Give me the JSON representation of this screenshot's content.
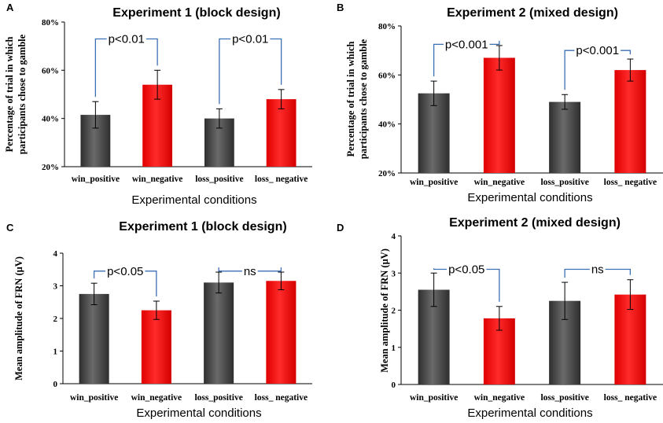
{
  "colors": {
    "gray": "#4a4a4a",
    "red": "#ff0000",
    "bracket": "#3d6fb4"
  },
  "chart_data": [
    {
      "panel": "A",
      "type": "bar",
      "title": "Experiment 1 (block design)",
      "xlabel": "Experimental conditions",
      "ylabel": [
        "Percentage of trial  in which",
        "participants chose to gamble"
      ],
      "categories": [
        "win_positive",
        "win_negative",
        "loss_positive",
        "loss_ negative"
      ],
      "values": [
        41.5,
        54.0,
        40.0,
        48.0
      ],
      "errors": [
        5.5,
        6.0,
        4.0,
        4.0
      ],
      "bar_colors": [
        "gray",
        "red",
        "gray",
        "red"
      ],
      "ylim": [
        20,
        80
      ],
      "yticks": [
        20,
        40,
        60,
        80
      ],
      "ytick_labels": [
        "20%",
        "40%",
        "60%",
        "80%"
      ],
      "comparisons": [
        {
          "bars": [
            0,
            1
          ],
          "label": "p<0.01",
          "level": 73
        },
        {
          "bars": [
            2,
            3
          ],
          "label": "p<0.01",
          "level": 73
        }
      ]
    },
    {
      "panel": "B",
      "type": "bar",
      "title": "Experiment 2 (mixed design)",
      "xlabel": "Experimental conditions",
      "ylabel": [
        "Percentage of trial  in which",
        "participants chose to gamble"
      ],
      "categories": [
        "win_positive",
        "win_negative",
        "loss_positive",
        "loss_ negative"
      ],
      "values": [
        52.5,
        67.0,
        49.0,
        62.0
      ],
      "errors": [
        5.0,
        5.0,
        3.0,
        4.5
      ],
      "bar_colors": [
        "gray",
        "red",
        "gray",
        "red"
      ],
      "ylim": [
        20,
        80
      ],
      "yticks": [
        20,
        40,
        60,
        80
      ],
      "ytick_labels": [
        "20%",
        "40%",
        "60%",
        "80%"
      ],
      "comparisons": [
        {
          "bars": [
            0,
            1
          ],
          "label": "p<0.001",
          "level": 72.5
        },
        {
          "bars": [
            2,
            3
          ],
          "label": "p<0.001",
          "level": 70
        }
      ]
    },
    {
      "panel": "C",
      "type": "bar",
      "title": "Experiment 1 (block design)",
      "xlabel": "Experimental conditions",
      "ylabel": [
        "Mean amplitude of FRN (μV)"
      ],
      "categories": [
        "win_positive",
        "win_negative",
        "loss_positive",
        "loss_ negative"
      ],
      "values": [
        2.75,
        2.25,
        3.1,
        3.15
      ],
      "errors": [
        0.33,
        0.28,
        0.32,
        0.27
      ],
      "bar_colors": [
        "gray",
        "red",
        "gray",
        "red"
      ],
      "ylim": [
        0,
        4
      ],
      "yticks": [
        0,
        1,
        2,
        3,
        4
      ],
      "ytick_labels": [
        "0",
        "1",
        "2",
        "3",
        "4"
      ],
      "comparisons": [
        {
          "bars": [
            0,
            1
          ],
          "label": "p<0.05",
          "level": 3.45
        },
        {
          "bars": [
            2,
            3
          ],
          "label": "ns",
          "level": 3.45
        }
      ]
    },
    {
      "panel": "D",
      "type": "bar",
      "title": "Experiment 2 (mixed design)",
      "xlabel": "Experimental conditions",
      "ylabel": [
        "Mean amplitude of FRN (μV)"
      ],
      "categories": [
        "win_positive",
        "win_negative",
        "loss_positive",
        "loss_ negative"
      ],
      "values": [
        2.55,
        1.78,
        2.25,
        2.42
      ],
      "errors": [
        0.45,
        0.32,
        0.5,
        0.4
      ],
      "bar_colors": [
        "gray",
        "red",
        "gray",
        "red"
      ],
      "ylim": [
        0,
        4
      ],
      "yticks": [
        0,
        1,
        2,
        3,
        4
      ],
      "ytick_labels": [
        "0",
        "1",
        "2",
        "3",
        "4"
      ],
      "comparisons": [
        {
          "bars": [
            0,
            1
          ],
          "label": "p<0.05",
          "level": 3.1
        },
        {
          "bars": [
            2,
            3
          ],
          "label": "ns",
          "level": 3.1
        }
      ]
    }
  ]
}
